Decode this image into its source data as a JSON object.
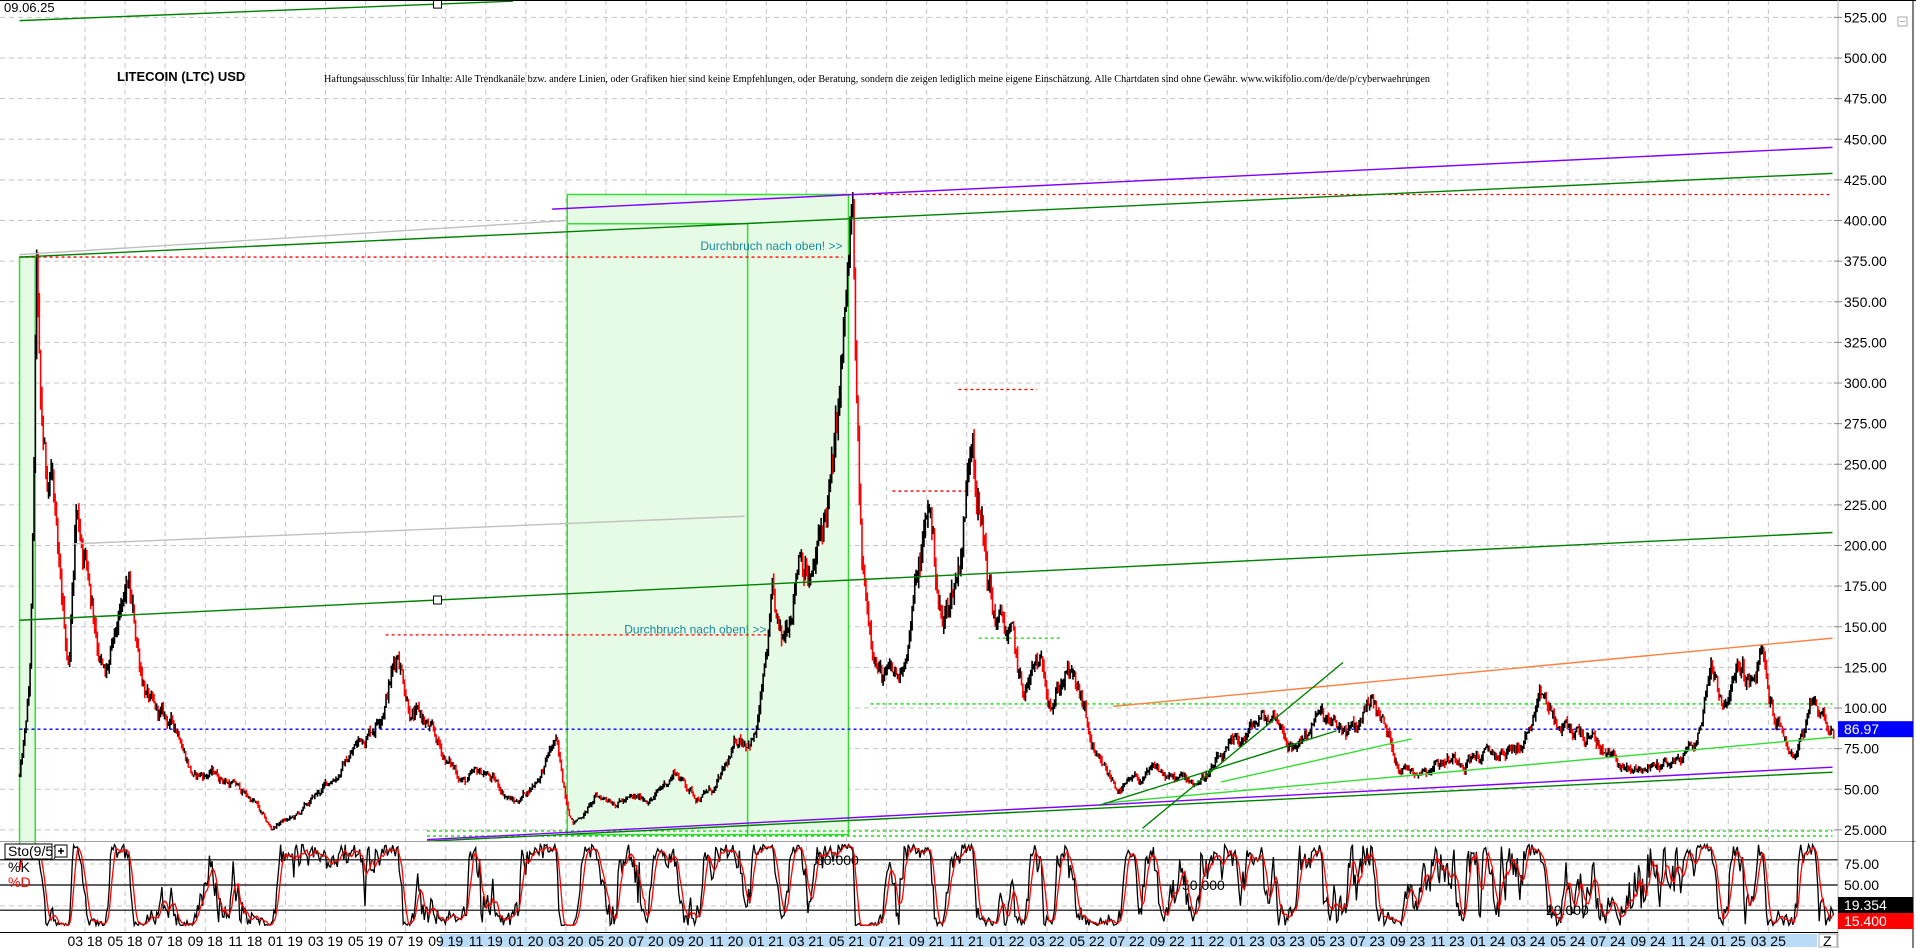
{
  "header": {
    "date": "09.06.25",
    "title": "LITECOIN (LTC) USD",
    "disclaimer": "Haftungsausschluss für Inhalte: Alle Trendkanäle bzw. andere Linien, oder Grafiken hier sind keine Empfehlungen, oder Beratung, sondern die zeigen lediglich meine eigene Einschätzung. Alle Chartdaten sind ohne Gewähr.  www.wikifolio.com/de/de/p/cyberwaehrungen"
  },
  "chart_data": [
    {
      "type": "line",
      "style": "ohlc-bars",
      "title": "LITECOIN (LTC) USD",
      "y_axis_position": "right",
      "ylim": [
        15,
        535
      ],
      "y_ticks": [
        "525.00",
        "500.00",
        "475.00",
        "450.00",
        "425.00",
        "400.00",
        "375.00",
        "350.00",
        "325.00",
        "300.00",
        "275.00",
        "250.00",
        "225.00",
        "200.00",
        "175.00",
        "150.00",
        "125.00",
        "100.00",
        "75.00",
        "50.00",
        "25.000"
      ],
      "y_tick_values": [
        525,
        500,
        475,
        450,
        425,
        400,
        375,
        350,
        325,
        300,
        275,
        250,
        225,
        200,
        175,
        150,
        125,
        100,
        75,
        50,
        25
      ],
      "grid": true,
      "last_price": "86.97",
      "colors": {
        "bars": "#000000",
        "down_bars": "#ff0000",
        "last_price_box": "#0000ff"
      },
      "points": [
        [
          "2017-11-23",
          58
        ],
        [
          "2017-12-08",
          110
        ],
        [
          "2017-12-19",
          365
        ],
        [
          "2017-12-25",
          270
        ],
        [
          "2018-01-03",
          235
        ],
        [
          "2018-01-12",
          250
        ],
        [
          "2018-01-22",
          175
        ],
        [
          "2018-02-06",
          125
        ],
        [
          "2018-02-16",
          225
        ],
        [
          "2018-03-01",
          200
        ],
        [
          "2018-03-16",
          160
        ],
        [
          "2018-04-01",
          118
        ],
        [
          "2018-04-25",
          150
        ],
        [
          "2018-05-06",
          168
        ],
        [
          "2018-05-25",
          125
        ],
        [
          "2018-06-15",
          95
        ],
        [
          "2018-07-25",
          85
        ],
        [
          "2018-08-15",
          58
        ],
        [
          "2018-09-15",
          60
        ],
        [
          "2018-10-15",
          53
        ],
        [
          "2018-11-15",
          42
        ],
        [
          "2018-12-10",
          25
        ],
        [
          "2018-12-25",
          30
        ],
        [
          "2019-01-15",
          32
        ],
        [
          "2019-02-15",
          45
        ],
        [
          "2019-03-15",
          58
        ],
        [
          "2019-04-15",
          76
        ],
        [
          "2019-05-15",
          92
        ],
        [
          "2019-06-20",
          138
        ],
        [
          "2019-07-10",
          100
        ],
        [
          "2019-08-01",
          90
        ],
        [
          "2019-09-01",
          68
        ],
        [
          "2019-10-01",
          55
        ],
        [
          "2019-11-01",
          60
        ],
        [
          "2019-12-15",
          42
        ],
        [
          "2020-01-15",
          55
        ],
        [
          "2020-02-15",
          80
        ],
        [
          "2020-03-13",
          30
        ],
        [
          "2020-04-15",
          44
        ],
        [
          "2020-05-15",
          45
        ],
        [
          "2020-06-15",
          43
        ],
        [
          "2020-07-15",
          46
        ],
        [
          "2020-08-15",
          62
        ],
        [
          "2020-09-15",
          46
        ],
        [
          "2020-10-15",
          50
        ],
        [
          "2020-11-20",
          80
        ],
        [
          "2020-12-15",
          85
        ],
        [
          "2021-01-10",
          160
        ],
        [
          "2021-01-25",
          130
        ],
        [
          "2021-02-20",
          210
        ],
        [
          "2021-03-10",
          180
        ],
        [
          "2021-04-12",
          245
        ],
        [
          "2021-05-10",
          395
        ],
        [
          "2021-05-25",
          180
        ],
        [
          "2021-06-25",
          120
        ],
        [
          "2021-07-20",
          115
        ],
        [
          "2021-08-15",
          175
        ],
        [
          "2021-09-05",
          225
        ],
        [
          "2021-09-25",
          150
        ],
        [
          "2021-10-20",
          190
        ],
        [
          "2021-11-10",
          285
        ],
        [
          "2021-11-25",
          210
        ],
        [
          "2021-12-10",
          160
        ],
        [
          "2022-01-10",
          140
        ],
        [
          "2022-01-25",
          105
        ],
        [
          "2022-02-15",
          125
        ],
        [
          "2022-03-10",
          110
        ],
        [
          "2022-04-01",
          125
        ],
        [
          "2022-04-25",
          100
        ],
        [
          "2022-05-15",
          65
        ],
        [
          "2022-06-20",
          50
        ],
        [
          "2022-07-20",
          55
        ],
        [
          "2022-08-15",
          60
        ],
        [
          "2022-09-15",
          55
        ],
        [
          "2022-10-15",
          55
        ],
        [
          "2022-11-15",
          65
        ],
        [
          "2022-12-15",
          75
        ],
        [
          "2023-01-15",
          90
        ],
        [
          "2023-02-15",
          95
        ],
        [
          "2023-03-10",
          75
        ],
        [
          "2023-04-15",
          95
        ],
        [
          "2023-05-15",
          85
        ],
        [
          "2023-06-15",
          85
        ],
        [
          "2023-07-05",
          110
        ],
        [
          "2023-07-25",
          90
        ],
        [
          "2023-08-20",
          65
        ],
        [
          "2023-09-15",
          63
        ],
        [
          "2023-10-15",
          68
        ],
        [
          "2023-11-15",
          70
        ],
        [
          "2023-12-15",
          72
        ],
        [
          "2024-01-15",
          70
        ],
        [
          "2024-02-15",
          75
        ],
        [
          "2024-03-25",
          102
        ],
        [
          "2024-04-20",
          85
        ],
        [
          "2024-05-20",
          85
        ],
        [
          "2024-06-20",
          75
        ],
        [
          "2024-07-15",
          68
        ],
        [
          "2024-08-05",
          60
        ],
        [
          "2024-09-15",
          65
        ],
        [
          "2024-10-15",
          68
        ],
        [
          "2024-11-15",
          80
        ],
        [
          "2024-12-05",
          132
        ],
        [
          "2024-12-25",
          105
        ],
        [
          "2025-01-20",
          125
        ],
        [
          "2025-02-05",
          112
        ],
        [
          "2025-02-20",
          130
        ],
        [
          "2025-03-05",
          100
        ],
        [
          "2025-04-08",
          70
        ],
        [
          "2025-05-10",
          100
        ],
        [
          "2025-06-09",
          87
        ]
      ],
      "annotations": {
        "trendlines": [
          {
            "color": "#008000",
            "from": [
              "2017-11-23",
              523
            ],
            "to": [
              "2019-12-12",
              535
            ],
            "handle": true
          },
          {
            "color": "#008000",
            "from": [
              "2017-11-23",
              377.5
            ],
            "to": [
              "2025-06-07",
              429
            ]
          },
          {
            "color": "#008000",
            "from": [
              "2017-11-23",
              154
            ],
            "to": [
              "2025-06-07",
              208
            ],
            "handle": true
          },
          {
            "color": "#8000ff",
            "from": [
              "2020-02-10",
              407
            ],
            "to": [
              "2025-06-07",
              445
            ]
          },
          {
            "color": "#8000ff",
            "from": [
              "2019-08-03",
              19
            ],
            "to": [
              "2025-06-07",
              63.6
            ]
          },
          {
            "color": "#008000",
            "from": [
              "2019-08-03",
              18
            ],
            "to": [
              "2025-06-07",
              60.5
            ]
          },
          {
            "color": "#33dd33",
            "from": [
              "2022-05-28",
              41.5
            ],
            "to": [
              "2025-06-07",
              82
            ]
          },
          {
            "color": "#ff8040",
            "from": [
              "2022-06-10",
              101
            ],
            "to": [
              "2025-06-07",
              143
            ]
          },
          {
            "color": "#008000",
            "from": [
              "2022-07-25",
              26
            ],
            "to": [
              "2023-05-25",
              128
            ]
          },
          {
            "color": "#008000",
            "from": [
              "2022-05-19",
              40
            ],
            "to": [
              "2023-05-15",
              86
            ]
          },
          {
            "color": "#33dd33",
            "from": [
              "2022-11-22",
              54.5
            ],
            "to": [
              "2023-09-07",
              81
            ]
          },
          {
            "color": "#c0c0c0",
            "from": [
              "2017-11-23",
              379
            ],
            "to": [
              "2020-03-03",
              400
            ]
          },
          {
            "color": "#c0c0c0",
            "from": [
              "2018-02-12",
              201
            ],
            "to": [
              "2020-11-28",
              218
            ]
          }
        ],
        "levels": [
          {
            "color": "#ff0000",
            "price": 377.5,
            "from": "2017-11-23",
            "to": "2021-04-25"
          },
          {
            "color": "#ff0000",
            "price": 416,
            "from": "2021-04-25",
            "to": "2025-06-07"
          },
          {
            "color": "#ff0000",
            "price": 145,
            "from": "2019-06-01",
            "to": "2021-01-06"
          },
          {
            "color": "#ff0000",
            "price": 233.5,
            "from": "2021-07-10",
            "to": "2021-11-07"
          },
          {
            "color": "#ff0000",
            "price": 296,
            "from": "2021-10-19",
            "to": "2022-02-15"
          },
          {
            "color": "#00dd00",
            "price": 143,
            "from": "2021-11-19",
            "to": "2022-03-25"
          },
          {
            "color": "#00dd00",
            "price": 102.5,
            "from": "2021-06-07",
            "to": "2025-06-07"
          },
          {
            "color": "#00dd00",
            "price": 24.3,
            "from": "2019-08-03",
            "to": "2025-06-07"
          },
          {
            "color": "#00dd00",
            "price": 21.2,
            "from": "2019-08-03",
            "to": "2025-06-07"
          },
          {
            "color": "#0000ff",
            "price": 86.97,
            "from": "2017-11-23",
            "to": "2025-06-09"
          }
        ],
        "zones": [
          {
            "from": "2017-11-23",
            "to": "2017-12-17",
            "top": 377.5,
            "bottom": 15
          },
          {
            "from": "2020-03-03",
            "to": "2021-05-04",
            "top": 416,
            "bottom": 22,
            "inner_to": "2020-12-03",
            "inner_top": 398
          }
        ],
        "labels": [
          {
            "text": "Durchbruch nach oben! >>",
            "date": "2021-04-25",
            "price": 382,
            "color": "#1a8a9a"
          },
          {
            "text": "Durchbruch nach oben! >>",
            "date": "2021-01-01",
            "price": 146,
            "color": "#1a8a9a"
          }
        ]
      }
    },
    {
      "type": "line",
      "title": "Sto(9/5)",
      "series": [
        {
          "name": "%K",
          "color": "#000000",
          "last": "19.354"
        },
        {
          "name": "%D",
          "color": "#ff0000",
          "last": "15.400"
        }
      ],
      "ylim": [
        0,
        100
      ],
      "y_ticks": [
        "75.00",
        "50.00"
      ],
      "y_tick_values": [
        75,
        50
      ],
      "levels": [
        {
          "value": 80,
          "label": "80.000"
        },
        {
          "value": 50,
          "label": "50.000"
        },
        {
          "value": 20,
          "label": "20.000"
        }
      ]
    }
  ],
  "x_axis": {
    "ticks": [
      "03 18",
      "05 18",
      "07 18",
      "09 18",
      "11 18",
      "01 19",
      "03 19",
      "05 19",
      "07 19",
      "09 19",
      "11 19",
      "01 20",
      "03 20",
      "05 20",
      "07 20",
      "09 20",
      "11 20",
      "01 21",
      "03 21",
      "05 21",
      "07 21",
      "09 21",
      "11 21",
      "01 22",
      "03 22",
      "05 22",
      "07 22",
      "09 22",
      "11 22",
      "01 23",
      "03 23",
      "05 23",
      "07 23",
      "09 23",
      "11 23",
      "01 24",
      "03 24",
      "05 24",
      "07 24",
      "09 24",
      "11 24",
      "01 25",
      "03 25"
    ],
    "zoom_button": "Z",
    "add_indicator_icon": "plus-icon",
    "collapse_icon": "minus-box-icon"
  }
}
